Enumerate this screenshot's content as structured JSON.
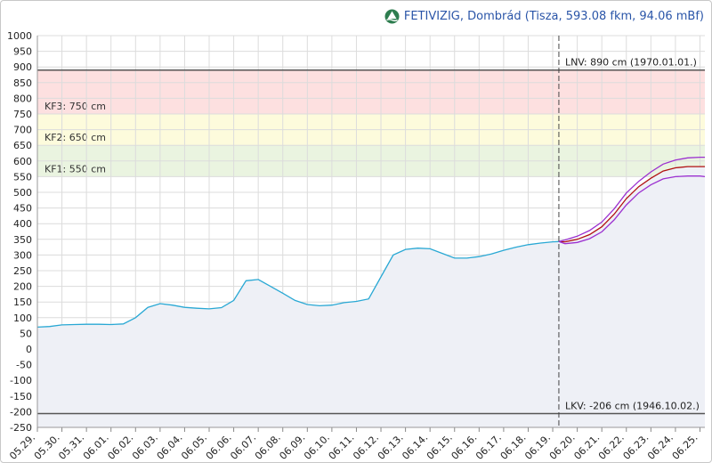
{
  "title": "FETIVIZIG, Dombrád (Tisza, 593.08 fkm, 94.06 mBf)",
  "colors": {
    "band_kf3": "#fde0e0",
    "band_kf2": "#fdfbdc",
    "band_kf1": "#eaf4e0",
    "observed_line": "#29a8d4",
    "observed_fill": "#eef0f6",
    "forecast_mid": "#b01010",
    "forecast_range": "#9b30d0",
    "ref_line": "#555555",
    "grid": "#dcdcdc"
  },
  "chart_data": {
    "type": "line",
    "title": "",
    "xlabel": "",
    "ylabel": "",
    "ylim": [
      -250,
      1000
    ],
    "xlim": [
      0,
      27.2
    ],
    "yticks": [
      1000,
      950,
      900,
      850,
      800,
      750,
      700,
      650,
      600,
      550,
      500,
      450,
      400,
      350,
      300,
      250,
      200,
      150,
      100,
      50,
      0,
      -50,
      -100,
      -150,
      -200,
      -250
    ],
    "xticks": [
      "05.29.",
      "05.30.",
      "05.31.",
      "06.01.",
      "06.02.",
      "06.03.",
      "06.04.",
      "06.05.",
      "06.06.",
      "06.07.",
      "06.08.",
      "06.09.",
      "06.10.",
      "06.11.",
      "06.12.",
      "06.13.",
      "06.14.",
      "06.15.",
      "06.16.",
      "06.17.",
      "06.18.",
      "06.19.",
      "06.20.",
      "06.21.",
      "06.22.",
      "06.23.",
      "06.24.",
      "06.25."
    ],
    "grid": true,
    "legend": "none",
    "bands": [
      {
        "label": "KF3: 750 cm",
        "from": 750,
        "to": 890
      },
      {
        "label": "KF2: 650 cm",
        "from": 650,
        "to": 750
      },
      {
        "label": "KF1: 550 cm",
        "from": 550,
        "to": 650
      }
    ],
    "reference_lines": [
      {
        "label": "LNV: 890 cm (1970.01.01.)",
        "value": 890
      },
      {
        "label": "LKV: -206 cm (1946.10.02.)",
        "value": -206
      }
    ],
    "now_marker_x": 21.25,
    "series": [
      {
        "role": "observed",
        "x": [
          0,
          0.5,
          1,
          1.5,
          2,
          2.5,
          3,
          3.5,
          4,
          4.5,
          5,
          5.5,
          6,
          6.5,
          7,
          7.5,
          8,
          8.5,
          9,
          9.5,
          10,
          10.5,
          11,
          11.5,
          12,
          12.5,
          13,
          13.5,
          14,
          14.5,
          15,
          15.5,
          16,
          16.5,
          17,
          17.5,
          18,
          18.5,
          19,
          19.5,
          20,
          20.5,
          21,
          21.25
        ],
        "y": [
          70,
          72,
          77,
          78,
          79,
          79,
          78,
          80,
          100,
          133,
          145,
          140,
          133,
          130,
          128,
          132,
          155,
          218,
          222,
          200,
          178,
          155,
          142,
          138,
          140,
          148,
          152,
          160,
          230,
          300,
          318,
          322,
          320,
          305,
          290,
          290,
          295,
          303,
          315,
          325,
          333,
          338,
          342,
          343
        ]
      },
      {
        "role": "forecast-expected",
        "x": [
          21.25,
          21.5,
          22,
          22.5,
          23,
          23.5,
          24,
          24.5,
          25,
          25.5,
          26,
          26.5,
          27,
          27.2
        ],
        "y": [
          343,
          342,
          350,
          365,
          390,
          430,
          480,
          518,
          545,
          568,
          578,
          582,
          582,
          582
        ]
      },
      {
        "role": "forecast-upper",
        "x": [
          21.25,
          21.5,
          22,
          22.5,
          23,
          23.5,
          24,
          24.5,
          25,
          25.5,
          26,
          26.5,
          27,
          27.2
        ],
        "y": [
          343,
          348,
          360,
          378,
          405,
          447,
          498,
          535,
          565,
          590,
          603,
          610,
          612,
          612
        ]
      },
      {
        "role": "forecast-lower",
        "x": [
          21.25,
          21.5,
          22,
          22.5,
          23,
          23.5,
          24,
          24.5,
          25,
          25.5,
          26,
          26.5,
          27,
          27.2
        ],
        "y": [
          343,
          336,
          340,
          352,
          374,
          412,
          460,
          498,
          524,
          543,
          550,
          552,
          552,
          550
        ]
      }
    ]
  }
}
